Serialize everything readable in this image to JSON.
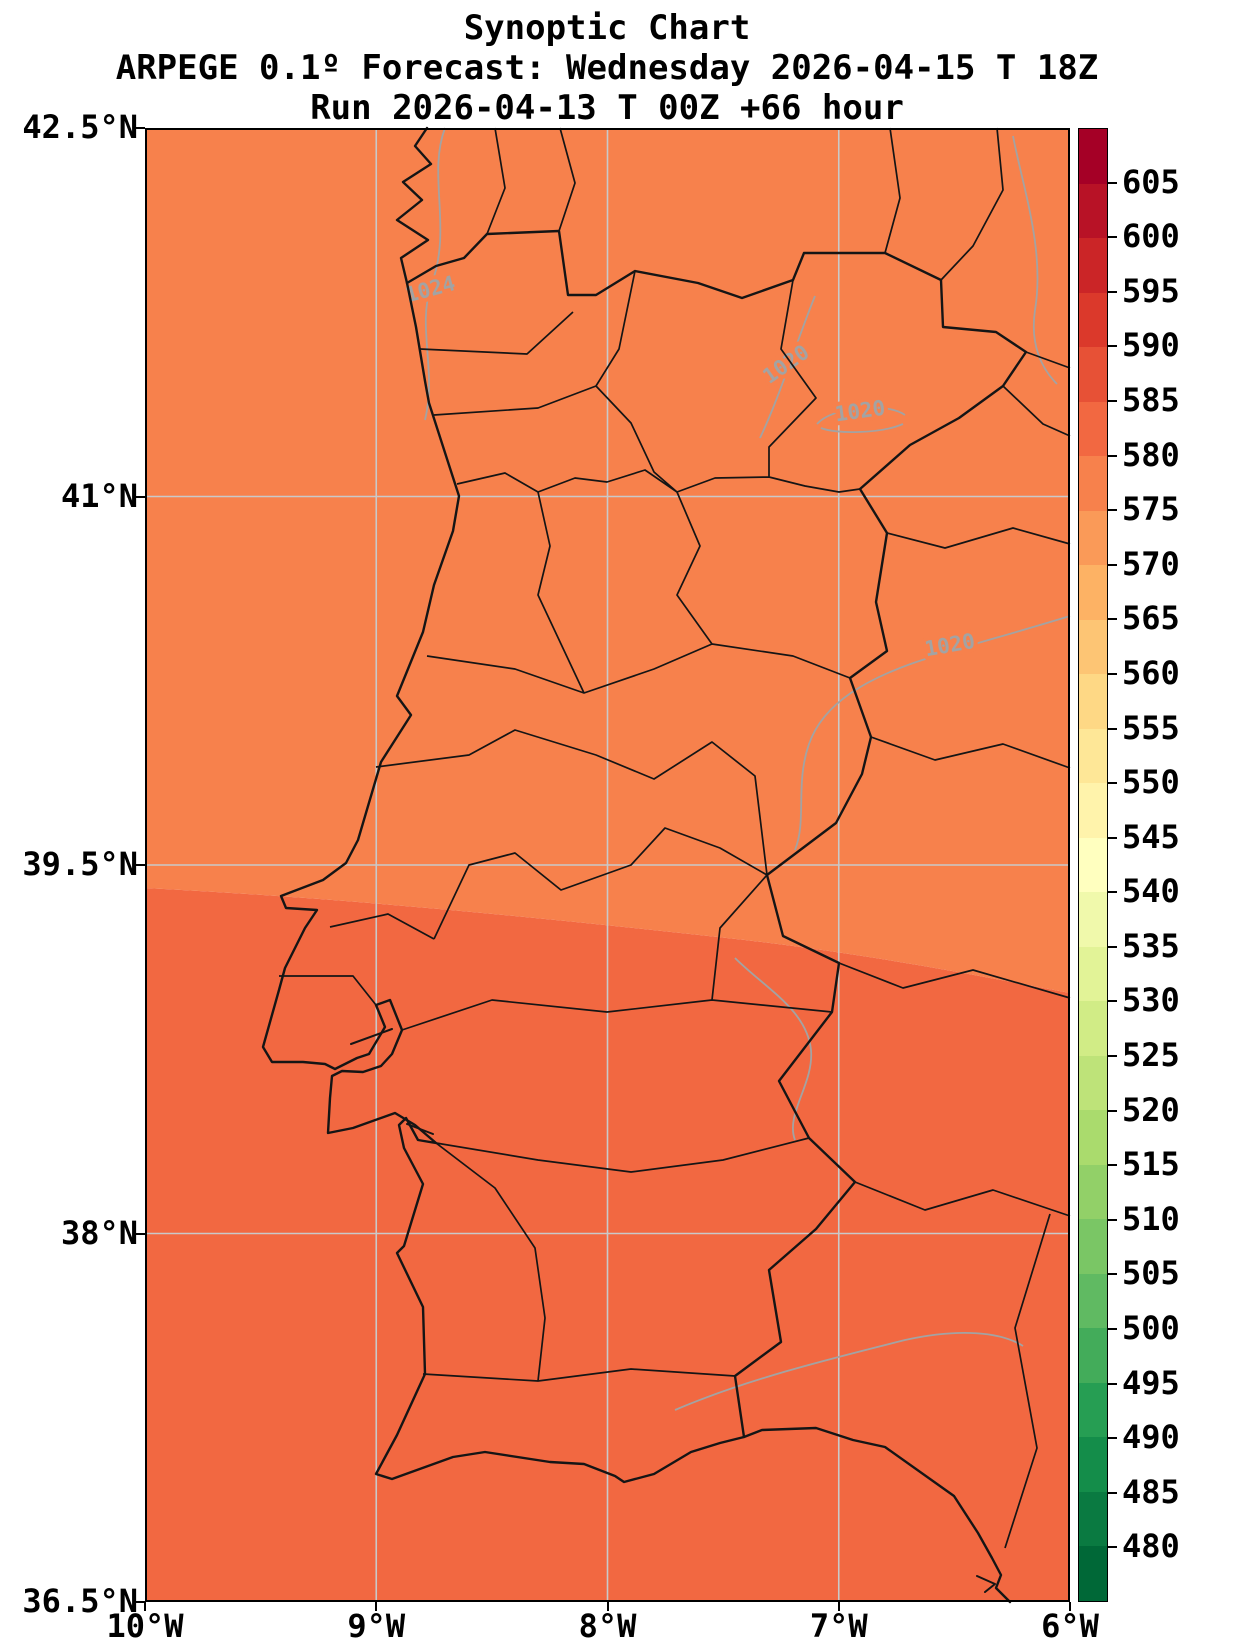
{
  "figure": {
    "title": "Synoptic Chart",
    "subtitle": "ARPEGE 0.1º Forecast: Wednesday 2026-04-15 T 18Z",
    "run_line": "Run 2026-04-13 T 00Z +66 hour"
  },
  "axes": {
    "x_ticks": [
      {
        "value": -10,
        "label": "10°W"
      },
      {
        "value": -9,
        "label": "9°W"
      },
      {
        "value": -8,
        "label": "8°W"
      },
      {
        "value": -7,
        "label": "7°W"
      },
      {
        "value": -6,
        "label": "6°W"
      }
    ],
    "y_ticks": [
      {
        "value": 42.5,
        "label": "42.5°N"
      },
      {
        "value": 41,
        "label": "41°N"
      },
      {
        "value": 39.5,
        "label": "39.5°N"
      },
      {
        "value": 38,
        "label": "38°N"
      },
      {
        "value": 36.5,
        "label": "36.5°N"
      }
    ],
    "extent": {
      "lon_min": -10,
      "lon_max": -6,
      "lat_min": 36.5,
      "lat_max": 42.5
    },
    "gridline_color": "#c9c9c9"
  },
  "colorbar": {
    "ticks": [
      480,
      485,
      490,
      495,
      500,
      505,
      510,
      515,
      520,
      525,
      530,
      535,
      540,
      545,
      550,
      555,
      560,
      565,
      570,
      575,
      580,
      585,
      590,
      595,
      600,
      605
    ],
    "bands": [
      {
        "min": null,
        "max": 480,
        "color": "#006837"
      },
      {
        "min": 480,
        "max": 485,
        "color": "#0a7a41"
      },
      {
        "min": 485,
        "max": 490,
        "color": "#148d4a"
      },
      {
        "min": 490,
        "max": 495,
        "color": "#269e53"
      },
      {
        "min": 495,
        "max": 500,
        "color": "#43ac5a"
      },
      {
        "min": 500,
        "max": 505,
        "color": "#60ba62"
      },
      {
        "min": 505,
        "max": 510,
        "color": "#7ac665"
      },
      {
        "min": 510,
        "max": 515,
        "color": "#92d068"
      },
      {
        "min": 515,
        "max": 520,
        "color": "#aadb6d"
      },
      {
        "min": 520,
        "max": 525,
        "color": "#bee379"
      },
      {
        "min": 525,
        "max": 530,
        "color": "#d1ec86"
      },
      {
        "min": 530,
        "max": 535,
        "color": "#e2f397"
      },
      {
        "min": 535,
        "max": 540,
        "color": "#f0f9ab"
      },
      {
        "min": 540,
        "max": 545,
        "color": "#ffffbf"
      },
      {
        "min": 545,
        "max": 550,
        "color": "#fff3ab"
      },
      {
        "min": 550,
        "max": 555,
        "color": "#fee797"
      },
      {
        "min": 555,
        "max": 560,
        "color": "#fed885"
      },
      {
        "min": 560,
        "max": 565,
        "color": "#fdc574"
      },
      {
        "min": 565,
        "max": 570,
        "color": "#fdb264"
      },
      {
        "min": 570,
        "max": 575,
        "color": "#fa9a58"
      },
      {
        "min": 575,
        "max": 580,
        "color": "#f7814c"
      },
      {
        "min": 580,
        "max": 585,
        "color": "#f26841"
      },
      {
        "min": 585,
        "max": 590,
        "color": "#e75136"
      },
      {
        "min": 590,
        "max": 595,
        "color": "#db392b"
      },
      {
        "min": 595,
        "max": 600,
        "color": "#cb2527"
      },
      {
        "min": 600,
        "max": 605,
        "color": "#b81226"
      },
      {
        "min": 605,
        "max": null,
        "color": "#a50026"
      }
    ]
  },
  "map": {
    "fill_upper_color": "#f7814c",
    "fill_lower_color": "#f26841",
    "upper_band_value_range": [
      575,
      580
    ],
    "lower_band_value_range": [
      580,
      585
    ],
    "boundary_color": "#151515",
    "isobar_color": "#a3a3a3",
    "isobar_labels": [
      {
        "text": "1024"
      },
      {
        "text": "1020"
      },
      {
        "text": "1020"
      },
      {
        "text": "1020"
      }
    ]
  },
  "chart_data": {
    "type": "heatmap",
    "subtype": "filled-contour synoptic map with overlaid isobars",
    "title": "Synoptic Chart",
    "subtitle": "ARPEGE 0.1º Forecast: Wednesday 2026-04-15 T 18Z",
    "run": "Run 2026-04-13 T 00Z +66 hour",
    "x": {
      "label": "longitude",
      "tick_labels": [
        "10°W",
        "9°W",
        "8°W",
        "7°W",
        "6°W"
      ],
      "range_deg": [
        -10,
        -6
      ]
    },
    "y": {
      "label": "latitude",
      "tick_labels": [
        "42.5°N",
        "41°N",
        "39.5°N",
        "38°N",
        "36.5°N"
      ],
      "range_deg": [
        36.5,
        42.5
      ]
    },
    "grid": true,
    "legend_position": "right-colorbar",
    "colorbar_ticks": [
      480,
      485,
      490,
      495,
      500,
      505,
      510,
      515,
      520,
      525,
      530,
      535,
      540,
      545,
      550,
      555,
      560,
      565,
      570,
      575,
      580,
      585,
      590,
      595,
      600,
      605
    ],
    "colormap": "green-yellow-red (RdYlGn reversed), 5-unit discrete bands",
    "filled_field_regions": [
      {
        "value_range": [
          575,
          580
        ],
        "extent": "entire map north of ≈39.2–39.4°N"
      },
      {
        "value_range": [
          580,
          585
        ],
        "extent": "entire map south of ≈39.2–39.4°N (boundary dips eastward to ≈39.0°N)"
      }
    ],
    "isobar_contours_hPa": [
      1024,
      1020,
      1020,
      1020
    ],
    "geography": "Portugal and western Spain: Atlantic coastline, Portugal–Spain border, district/province boundaries in black; grey isobar contours"
  }
}
